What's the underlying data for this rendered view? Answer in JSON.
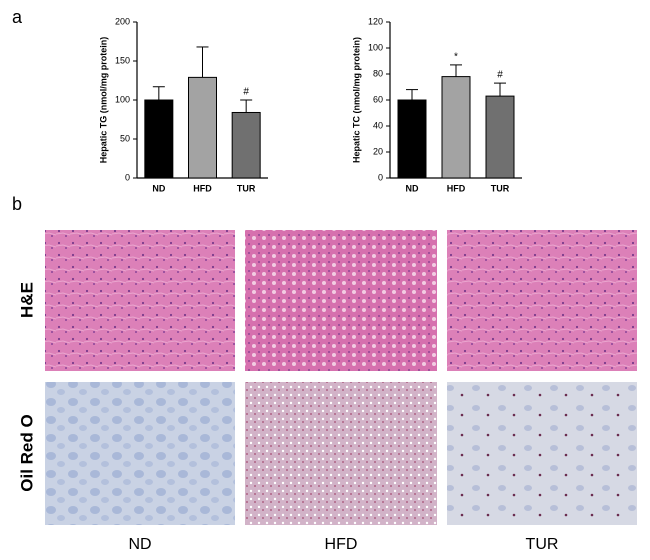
{
  "panel_labels": [
    "a",
    "b"
  ],
  "chart_data": [
    {
      "type": "bar",
      "ylabel": "Hepatic TG (nmol/mg protein)",
      "categories": [
        "ND",
        "HFD",
        "TUR"
      ],
      "values": [
        100,
        129,
        84
      ],
      "errors": [
        17,
        39,
        16
      ],
      "colors": [
        "#000000",
        "#a3a3a3",
        "#707070"
      ],
      "annotations": [
        null,
        null,
        "#"
      ],
      "ylim": [
        0,
        200
      ],
      "yticks": [
        0,
        50,
        100,
        150,
        200
      ]
    },
    {
      "type": "bar",
      "ylabel": "Hepatic TC (nmol/mg protein)",
      "categories": [
        "ND",
        "HFD",
        "TUR"
      ],
      "values": [
        60,
        78,
        63
      ],
      "errors": [
        8,
        9,
        10
      ],
      "colors": [
        "#000000",
        "#a3a3a3",
        "#707070"
      ],
      "annotations": [
        null,
        "*",
        "#"
      ],
      "ylim": [
        0,
        120
      ],
      "yticks": [
        0,
        20,
        40,
        60,
        80,
        100,
        120
      ]
    }
  ],
  "micrographs": {
    "rows": [
      "H&E",
      "Oil Red O"
    ],
    "columns": [
      "ND",
      "HFD",
      "TUR"
    ]
  }
}
